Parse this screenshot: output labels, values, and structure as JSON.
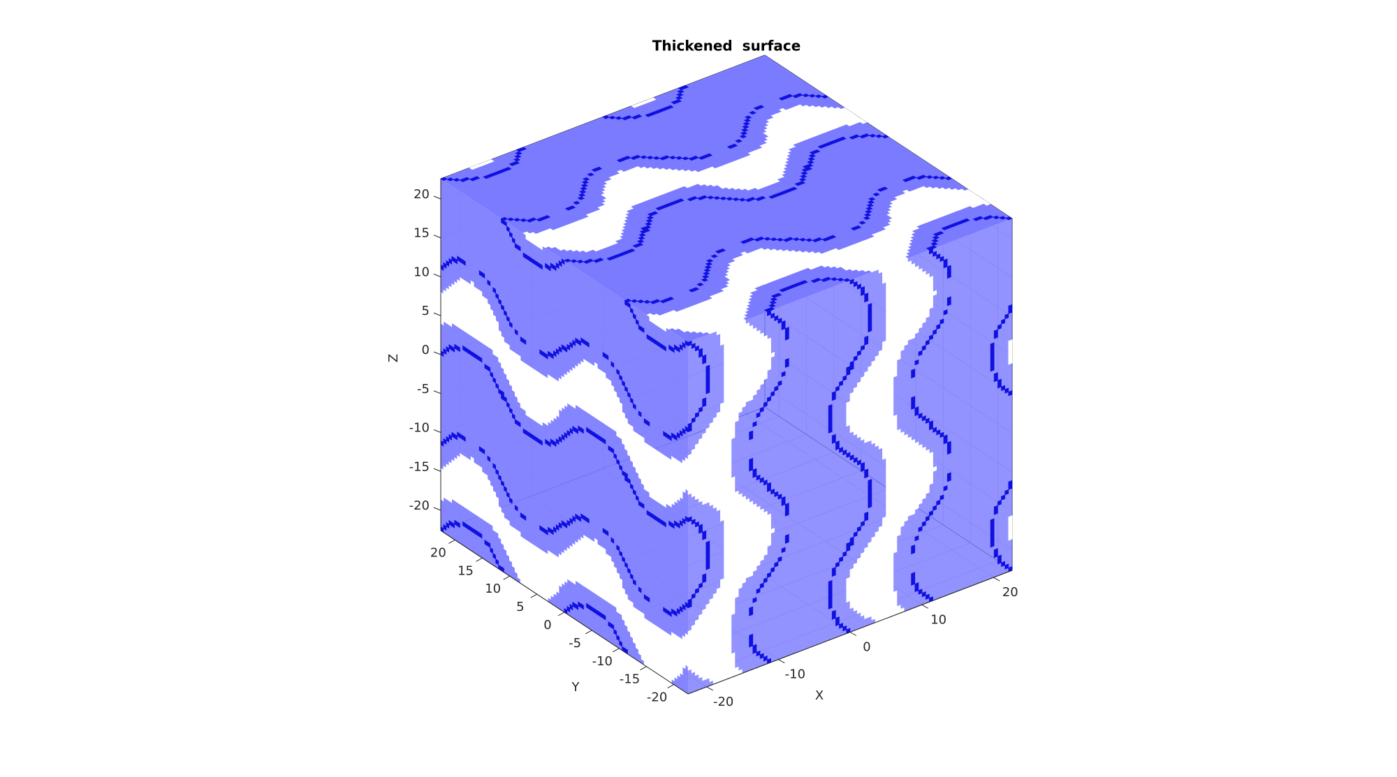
{
  "chart_data": {
    "type": "surface3d",
    "title": "Thickened  surface",
    "xlabel": "X",
    "ylabel": "Y",
    "zlabel": "Z",
    "xlim": [
      -22.6,
      22.6
    ],
    "ylim": [
      -22.6,
      22.6
    ],
    "zlim": [
      -22.6,
      22.6
    ],
    "xticks": [
      -20,
      -10,
      0,
      10,
      20
    ],
    "yticks": [
      -20,
      -15,
      -10,
      -5,
      0,
      5,
      10,
      15,
      20
    ],
    "zticks": [
      -20,
      -15,
      -10,
      -5,
      0,
      5,
      10,
      15,
      20
    ],
    "grid": true,
    "color": "#7b7bff",
    "edge_color": "#1010e0"
  }
}
